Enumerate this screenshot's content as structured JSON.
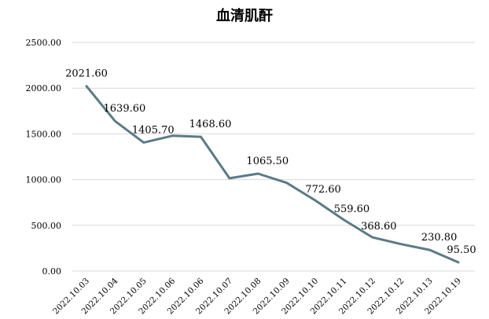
{
  "chart_data": {
    "type": "line",
    "title": "血清肌酐",
    "xlabel": "",
    "ylabel": "",
    "categories": [
      "2022.10.03",
      "2022.10.04",
      "2022.10.05",
      "2022.10.06",
      "2022.10.06",
      "2022.10.07",
      "2022.10.08",
      "2022.10.09",
      "2022.10.10",
      "2022.10.11",
      "2022.10.12",
      "2022.10.12",
      "2022.10.13",
      "2022.10.19"
    ],
    "values": [
      2021.6,
      1639.6,
      1405.7,
      1479,
      1468.6,
      1015,
      1065.5,
      965,
      772.6,
      559.6,
      368.6,
      295,
      230.8,
      95.5
    ],
    "data_labels": [
      "2021.60",
      "1639.60",
      "1405.70",
      "",
      "1468.60",
      "",
      "1065.50",
      "",
      "772.60",
      "559.60",
      "368.60",
      "",
      "230.80",
      "95.50"
    ],
    "ylim": [
      0,
      2500
    ],
    "yticks": [
      "0.00",
      "500.00",
      "1000.00",
      "1500.00",
      "2000.00",
      "2500.00"
    ],
    "grid": true,
    "colors": {
      "line": "#5c7a87",
      "grid": "#d9d9d9"
    }
  }
}
